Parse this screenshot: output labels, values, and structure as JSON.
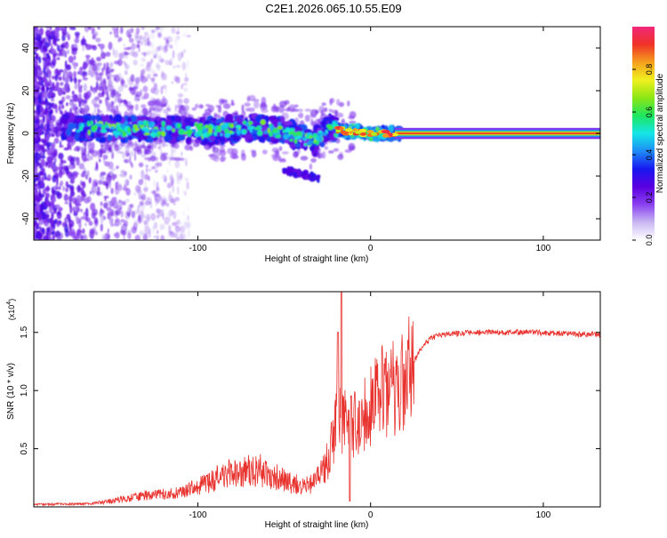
{
  "title": "C2E1.2026.065.10.55.E09",
  "colors": {
    "snr_line": "#e8322e",
    "axis": "#000000",
    "colormap": [
      "#ffffff",
      "#c9b8f2",
      "#8a40f0",
      "#5a00e0",
      "#1818f0",
      "#1e8cf5",
      "#14e6e6",
      "#1ee660",
      "#8ce614",
      "#f0f01e",
      "#f5a01e",
      "#f03228",
      "#f0287a"
    ]
  },
  "chart_data": [
    {
      "type": "heatmap",
      "name": "spectrogram",
      "xlabel": "Height of straight line (km)",
      "ylabel": "Frequency (Hz)",
      "xlim": [
        -195,
        133
      ],
      "ylim": [
        -50,
        50
      ],
      "xticks": [
        -100,
        0,
        100
      ],
      "xtick_labels": [
        "-100",
        "0",
        "100"
      ],
      "yticks": [
        -40,
        -20,
        0,
        20,
        40
      ],
      "ytick_labels": [
        "-40",
        "-20",
        "0",
        "20",
        "40"
      ],
      "ridge": {
        "x": [
          -175,
          -150,
          -120,
          -90,
          -65,
          -50,
          -40,
          -32,
          -25,
          -15,
          0,
          15,
          133
        ],
        "y": [
          3,
          2,
          2,
          1,
          3,
          1,
          -2,
          -4,
          3,
          1,
          0,
          0,
          0
        ]
      },
      "side_branch": {
        "x": [
          -50,
          -40,
          -30
        ],
        "y": [
          -17,
          -19,
          -21
        ]
      },
      "colorbar": {
        "label": "Normalized spectral amplitude",
        "range": [
          0,
          1
        ],
        "ticks": [
          0.0,
          0.2,
          0.4,
          0.6,
          0.8
        ],
        "tick_labels": [
          "0.0",
          "0.2",
          "0.4",
          "0.6",
          "0.8"
        ]
      }
    },
    {
      "type": "line",
      "name": "snr",
      "xlabel": "Height of straight line (km)",
      "ylabel": "SNR (10 * v/v)",
      "multiplier_prefix": "(x10",
      "multiplier_exp": "4",
      "multiplier_suffix": ")",
      "xlim": [
        -195,
        133
      ],
      "ylim": [
        0,
        1.85
      ],
      "xticks": [
        -100,
        0,
        100
      ],
      "xtick_labels": [
        "-100",
        "0",
        "100"
      ],
      "yticks": [
        0.5,
        1.0,
        1.5
      ],
      "ytick_labels": [
        "0.5",
        "1.0",
        "1.5"
      ],
      "envelope": {
        "x": [
          -195,
          -160,
          -150,
          -130,
          -110,
          -95,
          -85,
          -75,
          -65,
          -55,
          -45,
          -38,
          -34,
          -30,
          -26,
          -22,
          -19,
          -15,
          -12,
          -8,
          -4,
          0,
          5,
          12,
          18,
          25,
          30,
          35,
          40,
          60,
          90,
          133
        ],
        "y": [
          0.02,
          0.03,
          0.05,
          0.1,
          0.12,
          0.2,
          0.28,
          0.3,
          0.32,
          0.26,
          0.2,
          0.18,
          0.2,
          0.25,
          0.35,
          0.55,
          0.75,
          0.8,
          0.7,
          0.75,
          0.8,
          0.85,
          0.95,
          1.0,
          1.05,
          1.25,
          1.38,
          1.45,
          1.48,
          1.5,
          1.5,
          1.48
        ]
      }
    }
  ]
}
